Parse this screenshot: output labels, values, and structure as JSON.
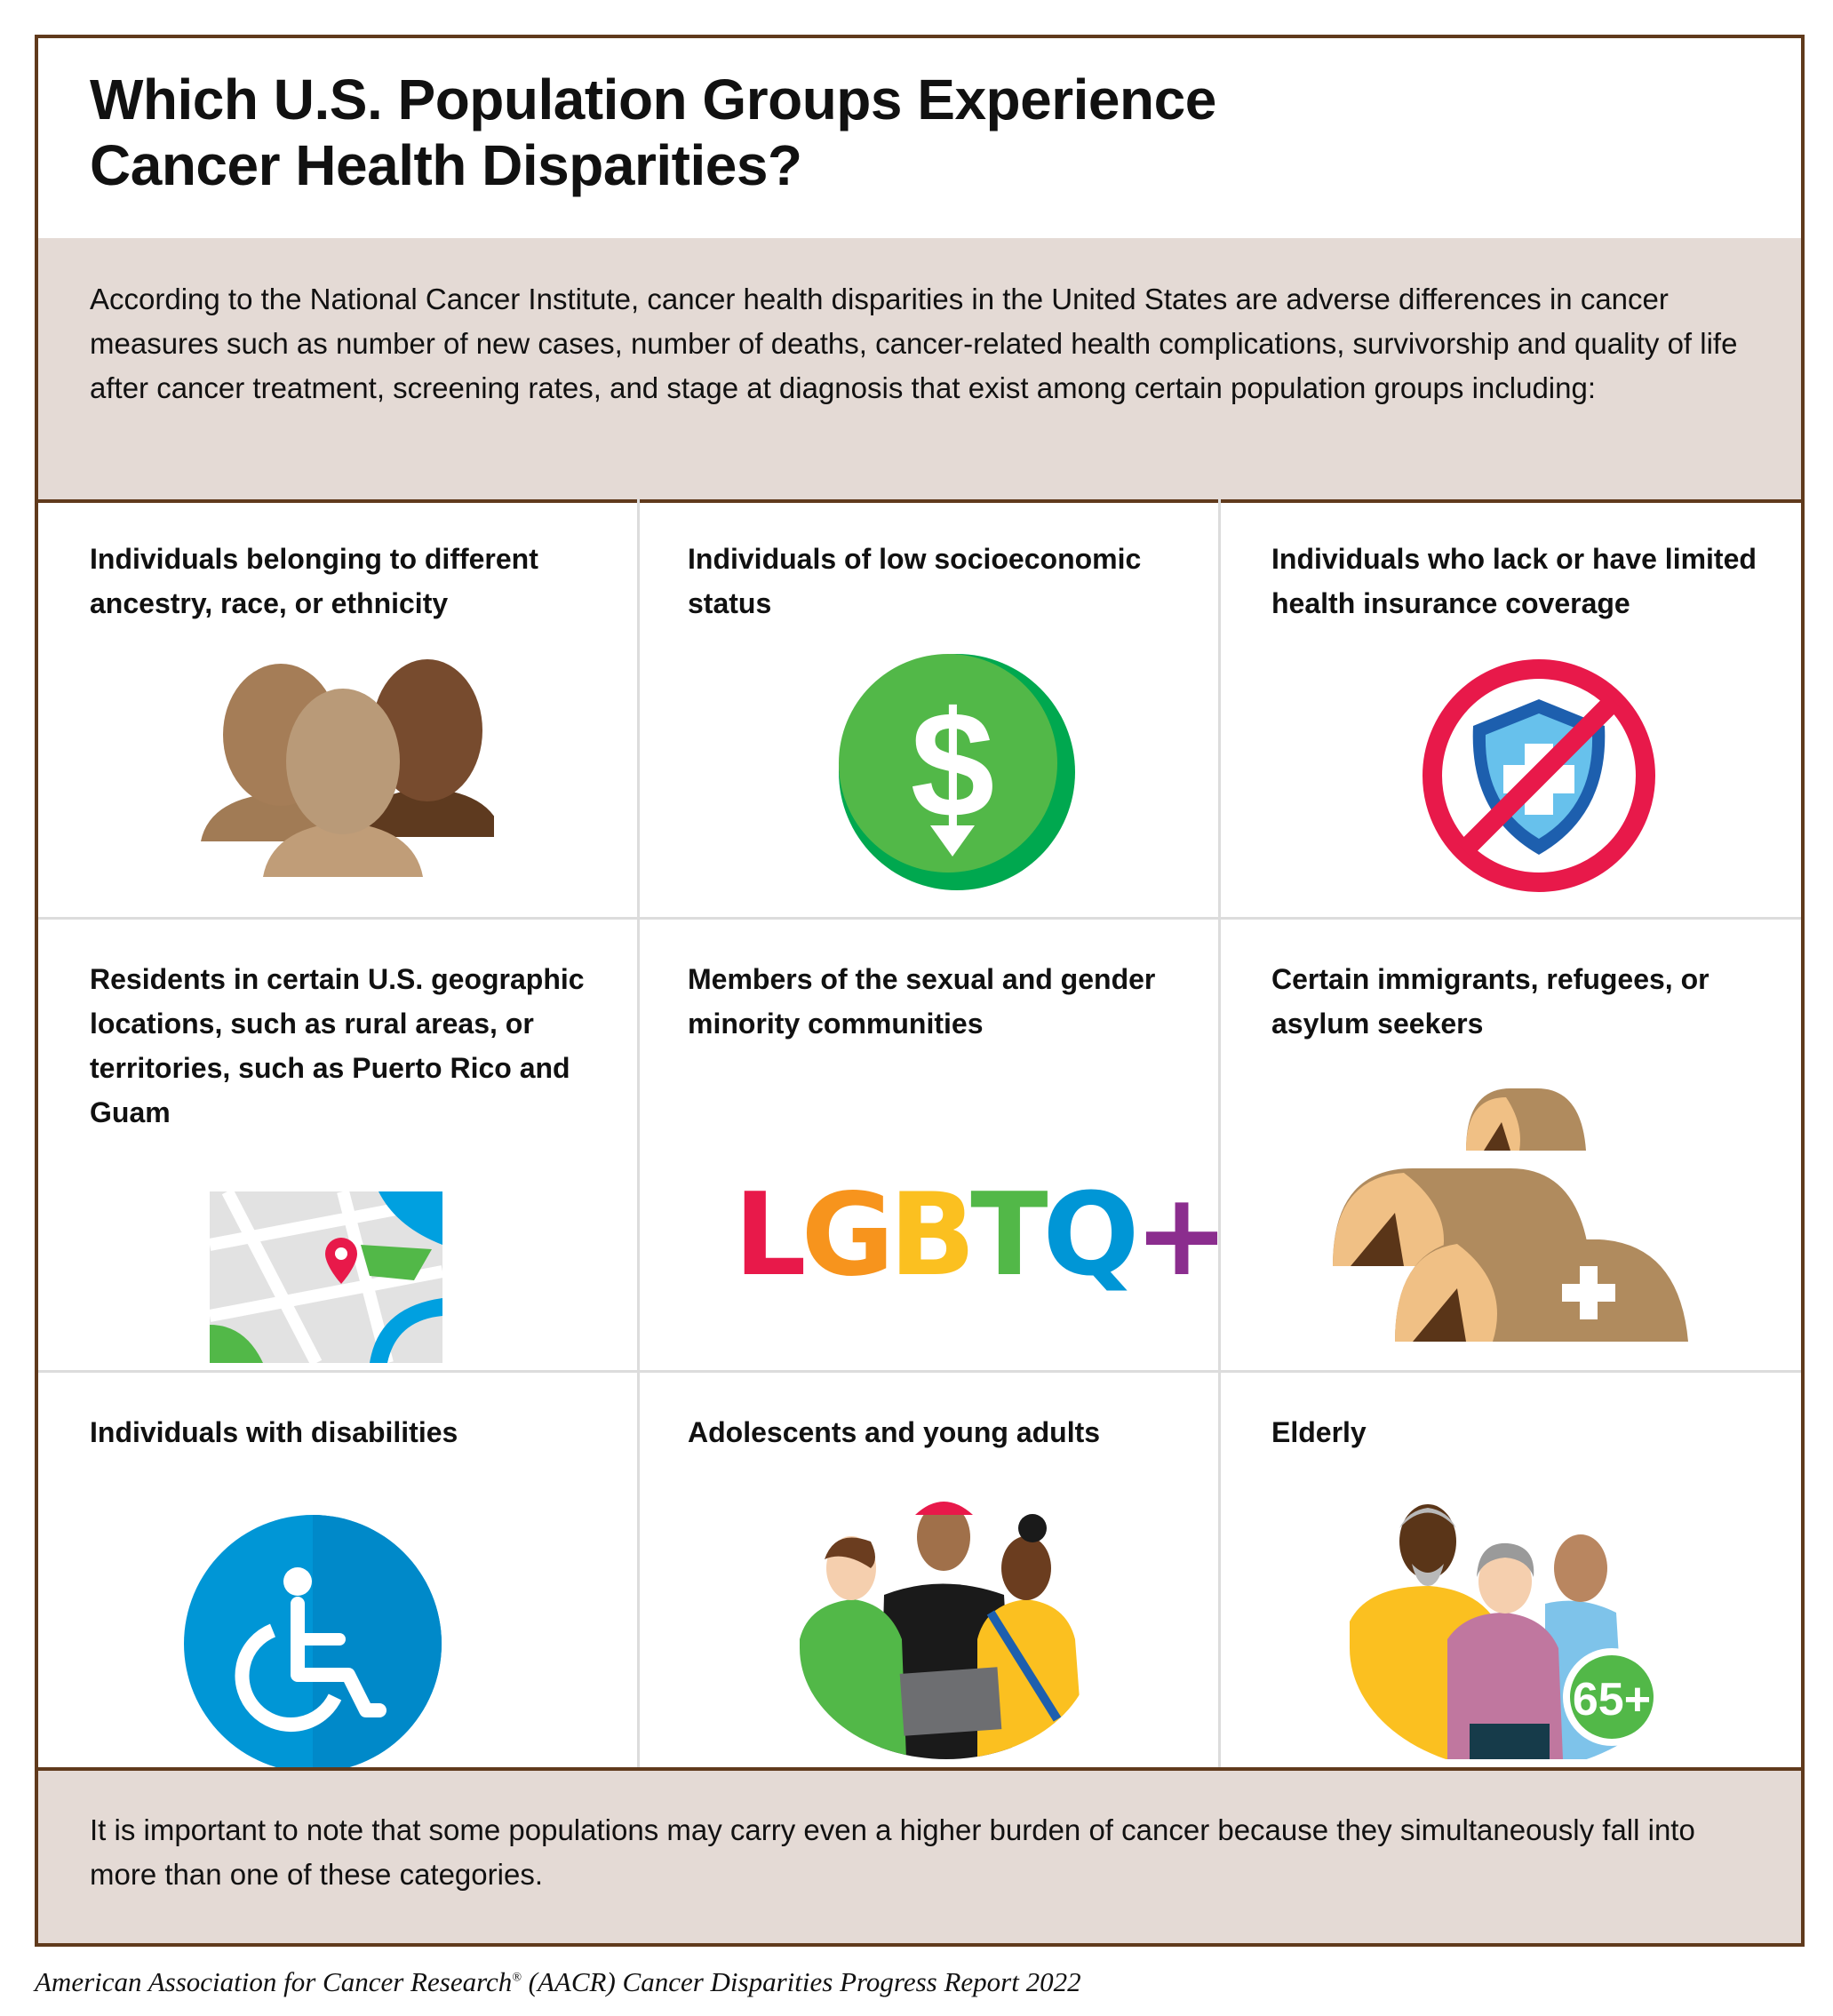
{
  "header": {
    "title_line1": "Which U.S. Population Groups Experience",
    "title_line2": "Cancer Health Disparities?"
  },
  "intro": {
    "text": "According to the National Cancer Institute, cancer health disparities in the United States are adverse differences in cancer measures such as number of new cases, number of deaths, cancer-related health complications, survivorship and quality of life after cancer treatment, screening rates, and stage at diagnosis that exist among certain population groups including:"
  },
  "groups": [
    {
      "label": "Individuals belonging to different ancestry, race, or ethnicity",
      "icon": "diverse-people-icon"
    },
    {
      "label": "Individuals of low socioeconomic status",
      "icon": "dollar-down-icon"
    },
    {
      "label": "Individuals who lack or have limited health insurance coverage",
      "icon": "no-insurance-icon"
    },
    {
      "label": "Residents in certain U.S. geographic locations, such as rural areas, or territories, such as Puerto Rico and Guam",
      "icon": "map-pin-icon"
    },
    {
      "label": "Members of the sexual and gender minority communities",
      "icon": "lgbtq-icon",
      "logo_text": "LGBTQ+"
    },
    {
      "label": "Certain immigrants, refugees, or asylum seekers",
      "icon": "refugee-tents-icon"
    },
    {
      "label": "Individuals with disabilities",
      "icon": "wheelchair-icon"
    },
    {
      "label": "Adolescents and young adults",
      "icon": "young-adults-icon"
    },
    {
      "label": "Elderly",
      "icon": "elderly-icon",
      "badge": "65+"
    }
  ],
  "outro": {
    "text": "It is important to note that some populations may carry even a higher burden of cancer because they simultaneously fall into more than one of these categories."
  },
  "caption": {
    "part1": "American Association for Cancer Research",
    "mark": "®",
    "part2": " (AACR) Cancer Disparities Progress Report 2022"
  },
  "colors": {
    "border": "#603a1c",
    "panel": "#e4dad5",
    "green": "#52b848",
    "red": "#e8194a",
    "blue": "#0096d6"
  }
}
